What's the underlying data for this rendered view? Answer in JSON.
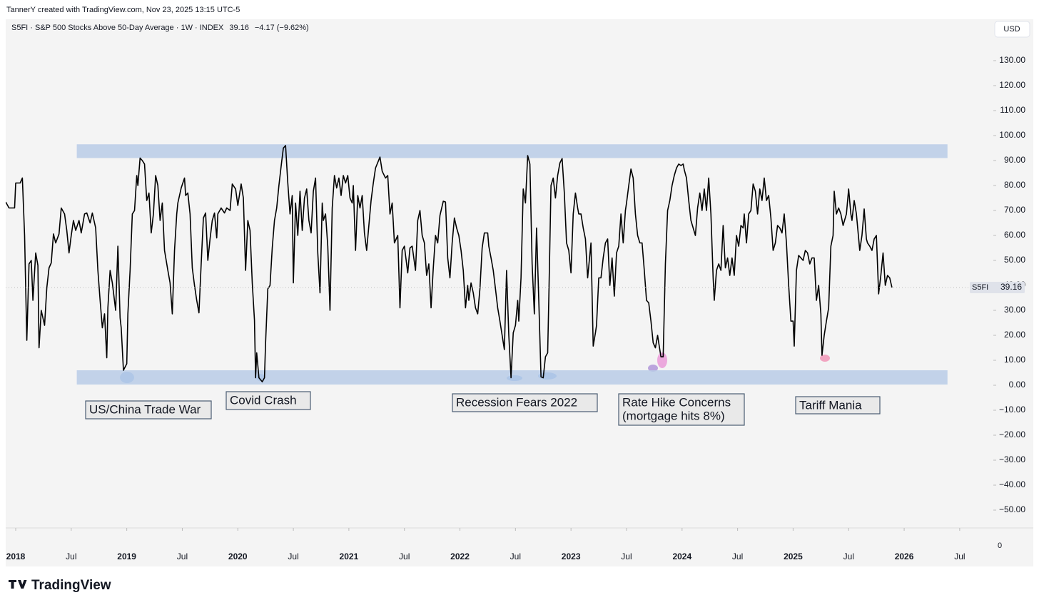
{
  "header": {
    "credit": "TannerY created with TradingView.com, Nov 23, 2025 13:15 UTC-5",
    "currency": "USD",
    "branding": "TradingView"
  },
  "chart_data": {
    "type": "line",
    "title": "S5FI · S&P 500 Stocks Above 50-Day Average · 1W · INDEX",
    "change": "−4.17 (−9.62%)",
    "scale_corner": "0",
    "xlim": [
      2017.91,
      2026.79
    ],
    "ylim": [
      -57.14,
      146.29
    ],
    "xticks": [
      {
        "value": 2018,
        "label": "2018"
      },
      {
        "value": 2018.5,
        "label": "Jul"
      },
      {
        "value": 2019,
        "label": "2019"
      },
      {
        "value": 2019.5,
        "label": "Jul"
      },
      {
        "value": 2020,
        "label": "2020"
      },
      {
        "value": 2020.5,
        "label": "Jul"
      },
      {
        "value": 2021,
        "label": "2021"
      },
      {
        "value": 2021.5,
        "label": "Jul"
      },
      {
        "value": 2022,
        "label": "2022"
      },
      {
        "value": 2022.5,
        "label": "Jul"
      },
      {
        "value": 2023,
        "label": "2023"
      },
      {
        "value": 2023.5,
        "label": "Jul"
      },
      {
        "value": 2024,
        "label": "2024"
      },
      {
        "value": 2024.5,
        "label": "Jul"
      },
      {
        "value": 2025,
        "label": "2025"
      },
      {
        "value": 2025.5,
        "label": "Jul"
      },
      {
        "value": 2026,
        "label": "2026"
      },
      {
        "value": 2026.5,
        "label": "Jul"
      }
    ],
    "yticks": [
      {
        "value": 130,
        "label": "130.00"
      },
      {
        "value": 120,
        "label": "120.00"
      },
      {
        "value": 110,
        "label": "110.00"
      },
      {
        "value": 100,
        "label": "100.00"
      },
      {
        "value": 90,
        "label": "90.00"
      },
      {
        "value": 80,
        "label": "80.00"
      },
      {
        "value": 70,
        "label": "70.00"
      },
      {
        "value": 60,
        "label": "60.00"
      },
      {
        "value": 50,
        "label": "50.00"
      },
      {
        "value": 40,
        "label": "40.00"
      },
      {
        "value": 30,
        "label": "30.00"
      },
      {
        "value": 20,
        "label": "20.00"
      },
      {
        "value": 10,
        "label": "10.00"
      },
      {
        "value": 0,
        "label": "0.00"
      },
      {
        "value": -10,
        "label": "−10.00"
      },
      {
        "value": -20,
        "label": "−20.00"
      },
      {
        "value": -30,
        "label": "−30.00"
      },
      {
        "value": -40,
        "label": "−40.00"
      },
      {
        "value": -50,
        "label": "−50.00"
      }
    ],
    "bands": [
      {
        "from": 91,
        "to": 96.5,
        "x": [
          2018.55,
          2026.39
        ]
      },
      {
        "from": 0.3,
        "to": 6,
        "x": [
          2018.55,
          2026.39
        ]
      }
    ],
    "annotations": [
      [
        "US/China Trade War"
      ],
      [
        "Covid Crash"
      ],
      [
        "Recession Fears 2022"
      ],
      [
        "Rate Hike Concerns",
        "(mortgage hits 8%)"
      ],
      [
        "Tariff Mania"
      ]
    ],
    "x": [
      2017.91,
      2017.94,
      2017.99,
      2018.0,
      2018.04,
      2018.06,
      2018.08,
      2018.1,
      2018.12,
      2018.14,
      2018.155,
      2018.18,
      2018.2,
      2018.21,
      2018.23,
      2018.26,
      2018.28,
      2018.3,
      2018.32,
      2018.34,
      2018.36,
      2018.39,
      2018.41,
      2018.44,
      2018.46,
      2018.48,
      2018.5,
      2018.52,
      2018.54,
      2018.57,
      2018.59,
      2018.62,
      2018.64,
      2018.67,
      2018.69,
      2018.72,
      2018.74,
      2018.76,
      2018.78,
      2018.8,
      2018.82,
      2018.83,
      2018.85,
      2018.87,
      2018.9,
      2018.92,
      2018.94,
      2018.95,
      2018.97,
      2019.0,
      2019.01,
      2019.03,
      2019.05,
      2019.07,
      2019.09,
      2019.1,
      2019.12,
      2019.14,
      2019.16,
      2019.18,
      2019.2,
      2019.22,
      2019.24,
      2019.26,
      2019.28,
      2019.3,
      2019.32,
      2019.34,
      2019.37,
      2019.39,
      2019.41,
      2019.43,
      2019.45,
      2019.46,
      2019.49,
      2019.52,
      2019.53,
      2019.55,
      2019.57,
      2019.59,
      2019.61,
      2019.63,
      2019.65,
      2019.67,
      2019.69,
      2019.71,
      2019.73,
      2019.75,
      2019.77,
      2019.79,
      2019.81,
      2019.82,
      2019.85,
      2019.88,
      2019.9,
      2019.93,
      2019.95,
      2019.98,
      2020.0,
      2020.03,
      2020.05,
      2020.07,
      2020.09,
      2020.11,
      2020.13,
      2020.15,
      2020.16,
      2020.17,
      2020.19,
      2020.22,
      2020.24,
      2020.25,
      2020.27,
      2020.29,
      2020.31,
      2020.33,
      2020.35,
      2020.37,
      2020.39,
      2020.41,
      2020.43,
      2020.45,
      2020.47,
      2020.49,
      2020.5,
      2020.52,
      2020.54,
      2020.56,
      2020.58,
      2020.6,
      2020.62,
      2020.64,
      2020.66,
      2020.68,
      2020.7,
      2020.72,
      2020.74,
      2020.76,
      2020.77,
      2020.79,
      2020.81,
      2020.83,
      2020.85,
      2020.87,
      2020.89,
      2020.91,
      2020.93,
      2020.95,
      2020.97,
      2020.99,
      2021.01,
      2021.03,
      2021.04,
      2021.06,
      2021.08,
      2021.1,
      2021.12,
      2021.14,
      2021.16,
      2021.18,
      2021.2,
      2021.22,
      2021.24,
      2021.28,
      2021.3,
      2021.33,
      2021.35,
      2021.37,
      2021.39,
      2021.41,
      2021.44,
      2021.46,
      2021.48,
      2021.5,
      2021.53,
      2021.55,
      2021.57,
      2021.6,
      2021.62,
      2021.64,
      2021.66,
      2021.68,
      2021.7,
      2021.72,
      2021.74,
      2021.76,
      2021.78,
      2021.8,
      2021.82,
      2021.85,
      2021.87,
      2021.89,
      2021.91,
      2021.93,
      2021.95,
      2021.97,
      2021.99,
      2022.01,
      2022.03,
      2022.05,
      2022.07,
      2022.08,
      2022.1,
      2022.12,
      2022.14,
      2022.16,
      2022.18,
      2022.2,
      2022.22,
      2022.25,
      2022.26,
      2022.28,
      2022.3,
      2022.32,
      2022.34,
      2022.36,
      2022.38,
      2022.4,
      2022.42,
      2022.44,
      2022.46,
      2022.48,
      2022.5,
      2022.52,
      2022.53,
      2022.55,
      2022.57,
      2022.59,
      2022.61,
      2022.63,
      2022.65,
      2022.67,
      2022.69,
      2022.71,
      2022.73,
      2022.75,
      2022.77,
      2022.79,
      2022.8,
      2022.82,
      2022.84,
      2022.86,
      2022.88,
      2022.9,
      2022.92,
      2022.94,
      2022.96,
      2022.98,
      2023.0,
      2023.02,
      2023.04,
      2023.06,
      2023.07,
      2023.09,
      2023.11,
      2023.13,
      2023.15,
      2023.18,
      2023.2,
      2023.22,
      2023.23,
      2023.25,
      2023.27,
      2023.29,
      2023.31,
      2023.33,
      2023.35,
      2023.37,
      2023.39,
      2023.41,
      2023.43,
      2023.45,
      2023.47,
      2023.49,
      2023.5,
      2023.52,
      2023.54,
      2023.56,
      2023.58,
      2023.6,
      2023.62,
      2023.64,
      2023.66,
      2023.68,
      2023.7,
      2023.72,
      2023.74,
      2023.76,
      2023.78,
      2023.79,
      2023.81,
      2023.83,
      2023.85,
      2023.87,
      2023.89,
      2023.91,
      2023.93,
      2023.95,
      2023.97,
      2023.99,
      2024.01,
      2024.02,
      2024.04,
      2024.06,
      2024.08,
      2024.1,
      2024.12,
      2024.14,
      2024.16,
      2024.18,
      2024.2,
      2024.22,
      2024.24,
      2024.26,
      2024.28,
      2024.29,
      2024.31,
      2024.33,
      2024.35,
      2024.37,
      2024.39,
      2024.41,
      2024.43,
      2024.45,
      2024.47,
      2024.49,
      2024.51,
      2024.53,
      2024.55,
      2024.56,
      2024.58,
      2024.6,
      2024.62,
      2024.64,
      2024.66,
      2024.68,
      2024.7,
      2024.72,
      2024.74,
      2024.76,
      2024.78,
      2024.8,
      2024.82,
      2024.84,
      2024.86,
      2024.88,
      2024.9,
      2024.92,
      2024.94,
      2024.96,
      2024.98,
      2025.0,
      2025.01,
      2025.03,
      2025.05,
      2025.07,
      2025.09,
      2025.11,
      2025.13,
      2025.15,
      2025.17,
      2025.19,
      2025.21,
      2025.23,
      2025.25,
      2025.26,
      2025.28,
      2025.3,
      2025.32,
      2025.34,
      2025.36,
      2025.37,
      2025.39,
      2025.41,
      2025.43,
      2025.45,
      2025.48,
      2025.5,
      2025.52,
      2025.53,
      2025.55,
      2025.57,
      2025.6,
      2025.62,
      2025.64,
      2025.66,
      2025.67,
      2025.69,
      2025.71,
      2025.73,
      2025.75,
      2025.77,
      2025.79,
      2025.81,
      2025.83,
      2025.85,
      2025.87,
      2025.89
    ],
    "series": [
      {
        "name": "S5FI",
        "color": "#000000",
        "values": [
          73.4,
          71,
          71,
          81,
          81,
          83,
          60,
          18,
          48.6,
          50,
          34,
          53,
          48,
          15,
          30,
          24,
          39,
          47,
          49,
          60.6,
          57,
          60.6,
          71,
          68.6,
          62,
          53,
          60,
          66,
          62,
          66,
          61,
          68.6,
          69,
          65,
          69,
          63,
          46,
          34,
          23,
          28.6,
          11,
          31,
          46,
          41,
          30,
          55.7,
          27,
          23,
          6,
          8.6,
          28.6,
          46,
          68.6,
          70,
          84,
          80,
          91,
          90,
          88.6,
          74,
          77,
          61,
          68.6,
          84,
          80,
          66,
          73,
          54,
          46,
          41,
          28.6,
          54,
          68.6,
          73,
          79,
          83,
          76,
          77,
          68.6,
          47,
          40,
          34,
          29,
          48.6,
          67,
          69,
          50,
          58.6,
          66,
          69,
          59,
          68.6,
          71,
          69,
          71,
          70,
          80.6,
          78.6,
          72,
          80.6,
          75,
          46,
          66,
          62,
          41,
          26,
          3,
          13,
          3,
          1.4,
          3,
          17,
          38.6,
          40,
          55,
          66,
          71,
          80,
          87.7,
          95,
          96,
          81,
          68.6,
          76,
          41,
          73,
          60,
          77.7,
          62,
          75,
          78.6,
          66,
          61,
          77.7,
          83,
          53,
          37,
          73,
          66,
          68.6,
          55.7,
          30,
          71,
          84,
          79,
          83,
          76,
          84,
          81,
          84,
          75,
          73,
          80,
          54,
          76,
          71,
          76,
          61,
          54,
          64,
          74,
          81,
          87,
          91.4,
          85.7,
          83,
          84,
          68.6,
          73,
          57,
          60,
          31,
          54,
          55.7,
          45,
          55,
          55.7,
          46,
          66,
          70,
          60,
          57,
          44,
          48.6,
          31,
          47,
          60,
          57,
          68,
          73.7,
          73.4,
          51,
          43,
          57,
          67,
          63,
          60,
          54,
          46,
          31,
          40,
          34,
          41,
          37,
          31,
          28.6,
          38.6,
          55,
          61,
          61,
          55.7,
          51,
          46,
          38.6,
          31,
          25.7,
          20,
          14.3,
          46,
          20,
          3,
          21,
          24,
          34,
          25.7,
          43,
          78.6,
          73,
          92,
          88.6,
          48.6,
          28.6,
          63,
          34,
          3.4,
          3,
          11.4,
          13,
          34,
          80,
          83,
          75,
          84,
          89,
          90.8,
          77,
          57,
          54,
          45,
          68.6,
          77,
          71,
          68.6,
          68.6,
          63,
          58.6,
          43,
          57,
          15.7,
          21,
          24,
          43,
          43,
          51,
          57,
          58.6,
          40,
          51,
          35.7,
          53,
          55.7,
          68.6,
          57,
          70,
          73,
          80,
          86.6,
          83,
          68.6,
          60,
          57,
          57,
          46,
          34,
          33,
          25.7,
          17,
          15,
          20,
          17,
          11.4,
          11.4,
          48.6,
          70,
          74,
          80,
          84,
          87,
          88.6,
          88,
          88.6,
          86.3,
          83,
          74,
          66,
          63,
          60,
          71,
          77,
          70,
          78.6,
          70,
          83,
          68.6,
          43,
          34,
          46,
          48.6,
          46,
          64,
          47,
          51,
          44,
          51,
          44,
          60,
          55.7,
          64,
          63,
          68.6,
          57,
          68.6,
          70,
          80.6,
          77.7,
          68.6,
          78.6,
          74,
          83,
          74,
          76,
          67,
          54,
          57,
          64,
          63,
          61,
          68.6,
          57,
          40,
          25.7,
          25.7,
          15.7,
          46,
          52,
          51,
          50,
          54,
          53,
          48.6,
          51,
          51,
          34,
          40,
          28.6,
          12,
          20,
          25.7,
          31,
          55.7,
          60,
          77.7,
          68.6,
          71,
          68.6,
          64,
          68.6,
          78.6,
          68.6,
          66,
          74,
          68.6,
          54,
          60,
          70.6,
          58.6,
          57,
          55.7,
          54,
          58.6,
          60,
          36.6,
          44,
          53,
          40,
          44,
          43,
          39.16
        ]
      }
    ],
    "band_color": "#b9cbe6",
    "grid": false
  }
}
